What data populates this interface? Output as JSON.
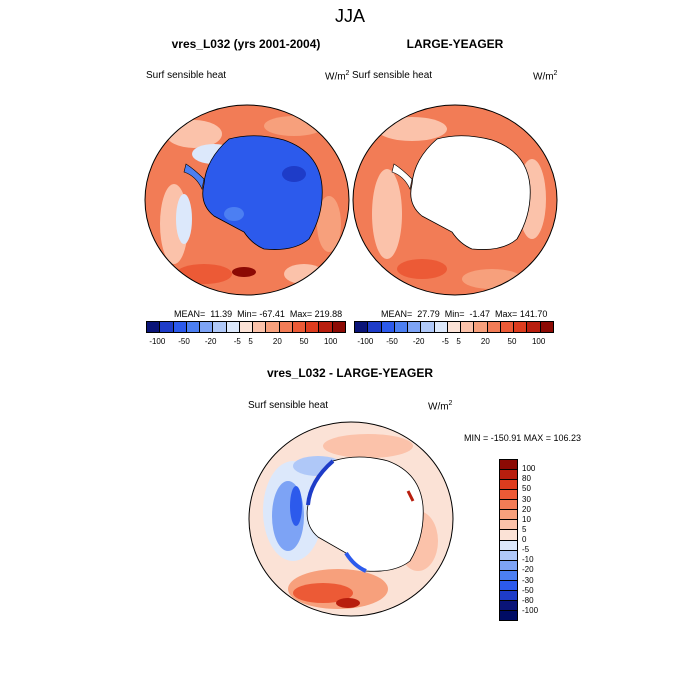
{
  "figure": {
    "title": "JJA"
  },
  "panels": {
    "left": {
      "title": "vres_L032 (yrs 2001-2004)",
      "variable": "Surf sensible heat",
      "units": "W/m",
      "units_sup": "2",
      "stats": "MEAN=  11.39  Min= -67.41  Max= 219.88"
    },
    "right": {
      "title": "LARGE-YEAGER",
      "variable": "Surf sensible heat",
      "units": "W/m",
      "units_sup": "2",
      "stats": "MEAN=  27.79  Min=  -1.47  Max= 141.70"
    },
    "diff": {
      "title": "vres_L032 - LARGE-YEAGER",
      "variable": "Surf sensible heat",
      "units": "W/m",
      "units_sup": "2",
      "stats": "MIN = -150.91 MAX = 106.23"
    }
  },
  "colorbar_top": {
    "labels": [
      "-100",
      "-50",
      "-20",
      "-5",
      "5",
      "20",
      "50",
      "100"
    ],
    "colors": [
      "#0a1478",
      "#1e3cc8",
      "#2c5aec",
      "#4c7ff2",
      "#7da3f5",
      "#afc8f8",
      "#dce8fb",
      "#fbe2d6",
      "#fbc2aa",
      "#f7a07c",
      "#f27c56",
      "#ec5a36",
      "#dd3c1e",
      "#b81e0e",
      "#8c0a04"
    ]
  },
  "colorbar_diff": {
    "labels": [
      "100",
      "80",
      "50",
      "30",
      "20",
      "10",
      "5",
      "0",
      "-5",
      "-10",
      "-20",
      "-30",
      "-50",
      "-80",
      "-100"
    ],
    "colors": [
      "#8c0a04",
      "#b81e0e",
      "#dd3c1e",
      "#ec5a36",
      "#f27c56",
      "#f7a07c",
      "#fbc2aa",
      "#fbe2d6",
      "#dce8fb",
      "#afc8f8",
      "#7da3f5",
      "#4c7ff2",
      "#2c5aec",
      "#1e3cc8",
      "#0a1478",
      "#000c64"
    ]
  }
}
